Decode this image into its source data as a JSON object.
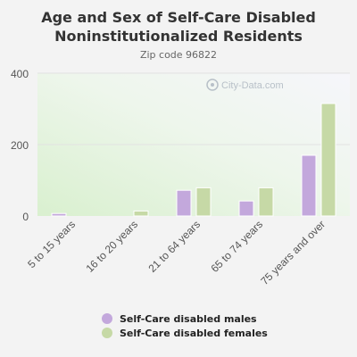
{
  "chart_data": {
    "type": "bar",
    "title": "Age and Sex of Self-Care Disabled Noninstitutionalized Residents",
    "subtitle": "Zip code 96822",
    "categories": [
      "5 to 15 years",
      "16 to 20 years",
      "21 to 64 years",
      "65 to 74 years",
      "75 years and over"
    ],
    "series": [
      {
        "name": "Self-Care disabled males",
        "color": "#c3a8dc",
        "values": [
          7,
          0,
          72,
          42,
          170
        ]
      },
      {
        "name": "Self-Care disabled females",
        "color": "#c6d9a6",
        "values": [
          0,
          14,
          79,
          79,
          315
        ]
      }
    ],
    "ylim": [
      0,
      400
    ],
    "yticks": [
      0,
      200,
      400
    ],
    "grid": true,
    "legend_position": "bottom",
    "watermark": "City-Data.com"
  }
}
